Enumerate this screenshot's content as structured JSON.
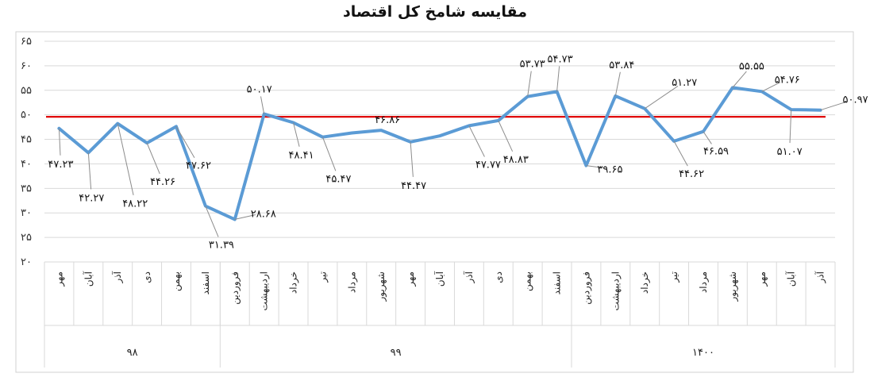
{
  "chart_data": {
    "type": "line",
    "title": "مقایسه شامخ کل اقتصاد",
    "xlabel": "",
    "ylabel": "",
    "ylim": [
      20,
      65
    ],
    "yticks": [
      "۲۰",
      "۲۵",
      "۳۰",
      "۳۵",
      "۴۰",
      "۴۵",
      "۵۰",
      "۵۵",
      "۶۰",
      "۶۵"
    ],
    "ytick_values": [
      20,
      25,
      30,
      35,
      40,
      45,
      50,
      55,
      60,
      65
    ],
    "grid": true,
    "legend": "none",
    "categories": [
      "مهر",
      "آبان",
      "آذر",
      "دی",
      "بهمن",
      "اسفند",
      "فروردین",
      "اردیبهشت",
      "خرداد",
      "تیر",
      "مرداد",
      "شهریور",
      "مهر",
      "آبان",
      "آذر",
      "دی",
      "بهمن",
      "اسفند",
      "فروردین",
      "اردیبهشت",
      "خرداد",
      "تیر",
      "مرداد",
      "شهریور",
      "مهر",
      "آبان",
      "آذر"
    ],
    "groups": [
      {
        "label": "۹۸",
        "start": 0,
        "end": 5
      },
      {
        "label": "۹۹",
        "start": 6,
        "end": 17
      },
      {
        "label": "۱۴۰۰",
        "start": 18,
        "end": 26
      }
    ],
    "series": [
      {
        "color": "#5B9BD5",
        "values": [
          47.23,
          42.27,
          48.22,
          44.26,
          47.62,
          31.39,
          28.68,
          50.17,
          48.41,
          45.47,
          46.3,
          46.86,
          44.47,
          45.7,
          47.77,
          48.83,
          53.73,
          54.73,
          39.65,
          53.84,
          51.27,
          44.62,
          46.59,
          55.55,
          54.76,
          51.07,
          50.97
        ]
      }
    ],
    "reference_line": {
      "value": 49.6,
      "color": "#E00000"
    },
    "data_labels": [
      {
        "index": 0,
        "text": "۴۷.۲۳"
      },
      {
        "index": 1,
        "text": "۴۲.۲۷"
      },
      {
        "index": 2,
        "text": "۴۸.۲۲"
      },
      {
        "index": 3,
        "text": "۴۴.۲۶"
      },
      {
        "index": 4,
        "text": "۴۷.۶۲"
      },
      {
        "index": 5,
        "text": "۳۱.۳۹"
      },
      {
        "index": 6,
        "text": "۲۸.۶۸"
      },
      {
        "index": 7,
        "text": "۵۰.۱۷"
      },
      {
        "index": 8,
        "text": "۴۸.۴۱"
      },
      {
        "index": 9,
        "text": "۴۵.۴۷"
      },
      {
        "index": 11,
        "text": "۴۶.۸۶"
      },
      {
        "index": 12,
        "text": "۴۴.۴۷"
      },
      {
        "index": 14,
        "text": "۴۷.۷۷"
      },
      {
        "index": 15,
        "text": "۴۸.۸۳"
      },
      {
        "index": 16,
        "text": "۵۳.۷۳"
      },
      {
        "index": 17,
        "text": "۵۴.۷۳"
      },
      {
        "index": 18,
        "text": "۳۹.۶۵"
      },
      {
        "index": 19,
        "text": "۵۳.۸۴"
      },
      {
        "index": 20,
        "text": "۵۱.۲۷"
      },
      {
        "index": 21,
        "text": "۴۴.۶۲"
      },
      {
        "index": 22,
        "text": "۴۶.۵۹"
      },
      {
        "index": 23,
        "text": "۵۵.۵۵"
      },
      {
        "index": 24,
        "text": "۵۴.۷۶"
      },
      {
        "index": 25,
        "text": "۵۱.۰۷"
      },
      {
        "index": 26,
        "text": "۵۰.۹۷"
      }
    ]
  }
}
